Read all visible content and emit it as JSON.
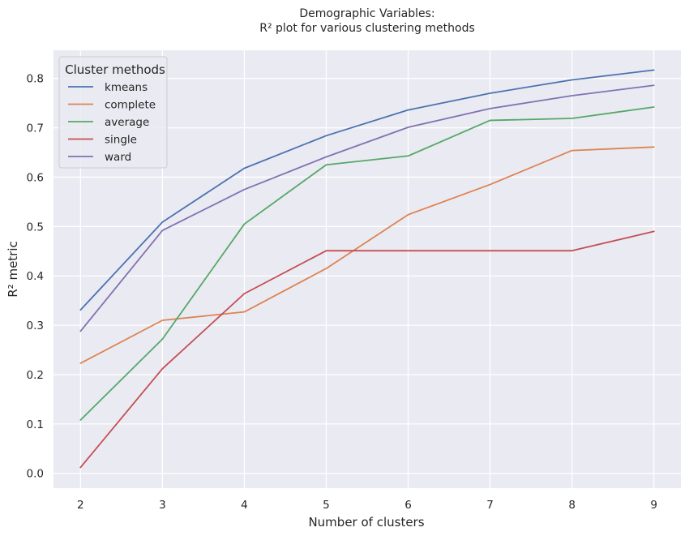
{
  "chart_data": {
    "type": "line",
    "title": [
      "Demographic Variables:",
      "R² plot for various clustering methods"
    ],
    "xlabel": "Number of clusters",
    "ylabel": "R² metric",
    "x": [
      2,
      3,
      4,
      5,
      6,
      7,
      8,
      9
    ],
    "xlim": [
      1.67,
      9.33
    ],
    "ylim": [
      -0.03,
      0.857
    ],
    "xticks": [
      "2",
      "3",
      "4",
      "5",
      "6",
      "7",
      "8",
      "9"
    ],
    "yticks": [
      "0.0",
      "0.1",
      "0.2",
      "0.3",
      "0.4",
      "0.5",
      "0.6",
      "0.7",
      "0.8"
    ],
    "grid": true,
    "legend": {
      "title": "Cluster methods",
      "placement": "top-left"
    },
    "series": [
      {
        "name": "kmeans",
        "color": "#4c72b0",
        "values": [
          0.331,
          0.509,
          0.618,
          0.684,
          0.736,
          0.77,
          0.797,
          0.817
        ]
      },
      {
        "name": "complete",
        "color": "#dd8452",
        "values": [
          0.223,
          0.31,
          0.327,
          0.415,
          0.524,
          0.585,
          0.654,
          0.661
        ]
      },
      {
        "name": "average",
        "color": "#55a868",
        "values": [
          0.108,
          0.272,
          0.505,
          0.625,
          0.643,
          0.715,
          0.719,
          0.742
        ]
      },
      {
        "name": "single",
        "color": "#c44e52",
        "values": [
          0.012,
          0.212,
          0.364,
          0.451,
          0.451,
          0.451,
          0.451,
          0.49
        ]
      },
      {
        "name": "ward",
        "color": "#8172b3",
        "values": [
          0.288,
          0.492,
          0.575,
          0.641,
          0.701,
          0.739,
          0.765,
          0.786
        ]
      }
    ]
  },
  "style": {
    "plot_background": "#eaeaf2",
    "grid_color": "#ffffff"
  }
}
